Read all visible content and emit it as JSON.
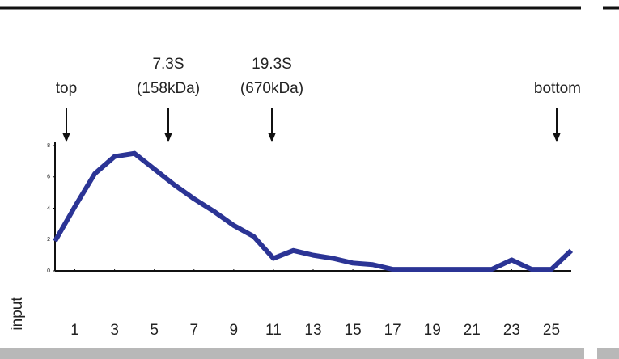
{
  "chart_data": {
    "type": "line",
    "x_label": "input",
    "annotations": [
      {
        "lines": [
          "top"
        ]
      },
      {
        "lines": [
          "7.3S",
          "(158kDa)"
        ]
      },
      {
        "lines": [
          "19.3S",
          "(670kDa)"
        ]
      },
      {
        "lines": [
          "bottom"
        ]
      }
    ],
    "x": [
      0,
      1,
      2,
      3,
      4,
      5,
      6,
      7,
      8,
      9,
      10,
      11,
      12,
      13,
      14,
      15,
      16,
      17,
      18,
      19,
      20,
      21,
      22,
      23,
      24,
      25,
      26
    ],
    "series": [
      {
        "color": "#2b3495",
        "values": [
          1.9,
          4.1,
          6.2,
          7.3,
          7.5,
          6.5,
          5.5,
          4.6,
          3.8,
          2.9,
          2.2,
          0.8,
          1.3,
          1.0,
          0.8,
          0.5,
          0.4,
          0.1,
          0.1,
          0.1,
          0.1,
          0.1,
          0.1,
          0.7,
          0.1,
          0.1,
          1.3
        ]
      }
    ],
    "xlim": [
      0,
      26
    ],
    "xticks": [
      1,
      3,
      5,
      7,
      9,
      11,
      13,
      15,
      17,
      19,
      21,
      23,
      25
    ],
    "ylim": [
      0,
      8
    ],
    "yticks": [
      0,
      2,
      4,
      6,
      8
    ]
  }
}
